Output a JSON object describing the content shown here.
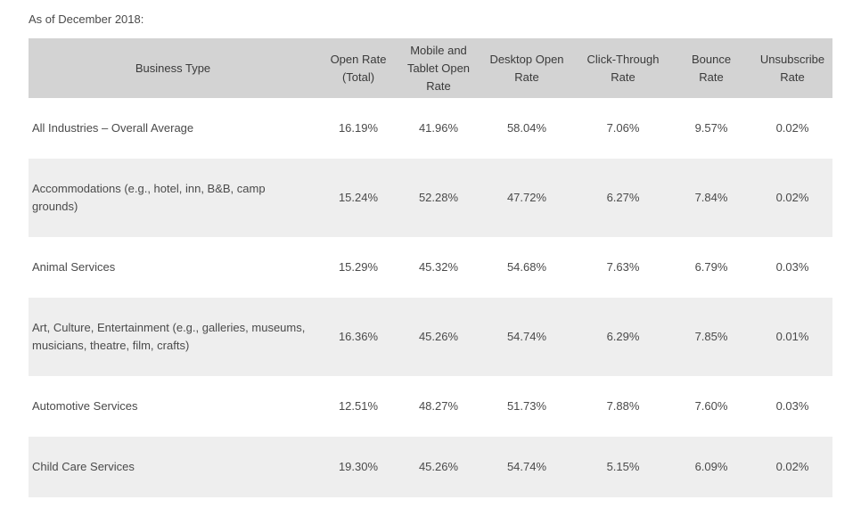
{
  "caption": "As of December 2018:",
  "headers": [
    "Business Type",
    "Open Rate (Total)",
    "Mobile and Tablet Open Rate",
    "Desktop Open Rate",
    "Click-Through Rate",
    "Bounce Rate",
    "Unsubscribe Rate"
  ],
  "rows": [
    {
      "type": "All Industries – Overall Average",
      "values": [
        "16.19%",
        "41.96%",
        "58.04%",
        "7.06%",
        "9.57%",
        "0.02%"
      ]
    },
    {
      "type": "Accommodations (e.g., hotel, inn, B&B, camp grounds)",
      "values": [
        "15.24%",
        "52.28%",
        "47.72%",
        "6.27%",
        "7.84%",
        "0.02%"
      ]
    },
    {
      "type": "Animal Services",
      "values": [
        "15.29%",
        "45.32%",
        "54.68%",
        "7.63%",
        "6.79%",
        "0.03%"
      ]
    },
    {
      "type": "Art, Culture, Entertainment (e.g., galleries, museums, musicians, theatre, film, crafts)",
      "values": [
        "16.36%",
        "45.26%",
        "54.74%",
        "6.29%",
        "7.85%",
        "0.01%"
      ]
    },
    {
      "type": "Automotive Services",
      "values": [
        "12.51%",
        "48.27%",
        "51.73%",
        "7.88%",
        "7.60%",
        "0.03%"
      ]
    },
    {
      "type": "Child Care Services",
      "values": [
        "19.30%",
        "45.26%",
        "54.74%",
        "5.15%",
        "6.09%",
        "0.02%"
      ]
    }
  ]
}
